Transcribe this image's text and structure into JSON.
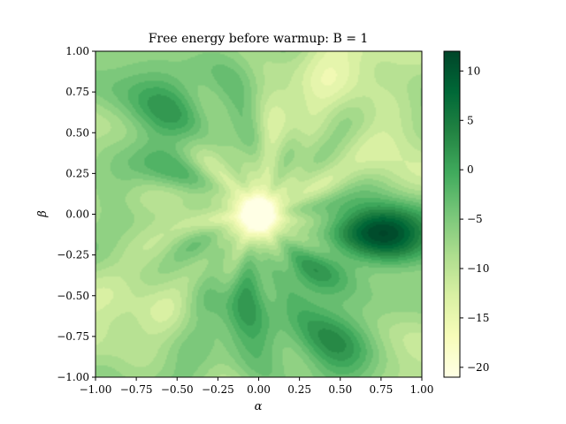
{
  "chart_data": {
    "type": "heatmap",
    "title": "Free energy before warmup: B = 1",
    "xlabel": "α",
    "ylabel": "β",
    "xlim": [
      -1.0,
      1.0
    ],
    "ylim": [
      -1.0,
      1.0
    ],
    "x_ticks": [
      "−1.00",
      "−0.75",
      "−0.50",
      "−0.25",
      "0.00",
      "0.25",
      "0.50",
      "0.75",
      "1.00"
    ],
    "y_ticks": [
      "−1.00",
      "−0.75",
      "−0.50",
      "−0.25",
      "0.00",
      "0.25",
      "0.50",
      "0.75",
      "1.00"
    ],
    "colorbar": {
      "range": [
        -21,
        12
      ],
      "ticks": [
        "10",
        "5",
        "0",
        "−5",
        "−10",
        "−15",
        "−20"
      ],
      "tick_values": [
        10,
        5,
        0,
        -5,
        -10,
        -15,
        -20
      ],
      "colormap": "YlGn",
      "colors": [
        "#ffffe5",
        "#f7fcb9",
        "#d9f0a3",
        "#addd8e",
        "#78c679",
        "#41ab5d",
        "#238443",
        "#006837",
        "#004529"
      ]
    },
    "grid": false,
    "features": [
      {
        "alpha": 0.0,
        "beta": 0.0,
        "value": -20
      },
      {
        "alpha": 0.75,
        "beta": -0.05,
        "value": 11
      },
      {
        "alpha": 0.55,
        "beta": 0.8,
        "value": -10
      },
      {
        "alpha": -0.55,
        "beta": 0.7,
        "value": 3
      },
      {
        "alpha": -0.7,
        "beta": -0.3,
        "value": -9
      },
      {
        "alpha": 0.0,
        "beta": -0.65,
        "value": 3
      },
      {
        "alpha": 0.6,
        "beta": -0.75,
        "value": 1
      },
      {
        "alpha": 0.9,
        "beta": 0.45,
        "value": -9
      }
    ]
  }
}
